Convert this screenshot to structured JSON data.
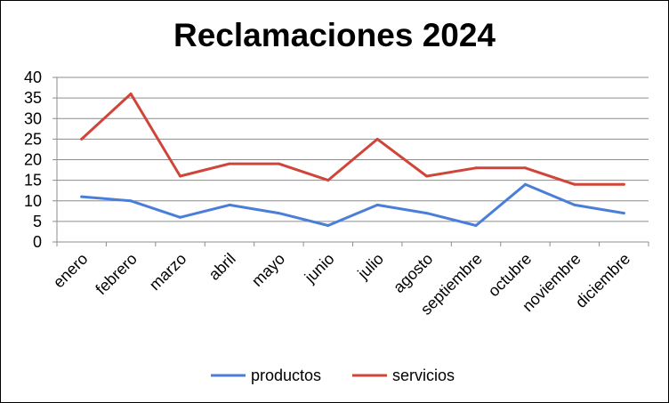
{
  "chart_data": {
    "type": "line",
    "title": "Reclamaciones 2024",
    "categories": [
      "enero",
      "febrero",
      "marzo",
      "abril",
      "mayo",
      "junio",
      "julio",
      "agosto",
      "septiembre",
      "octubre",
      "noviembre",
      "diciembre"
    ],
    "series": [
      {
        "name": "productos",
        "color": "#4a7ed9",
        "values": [
          11,
          10,
          6,
          9,
          7,
          4,
          9,
          7,
          4,
          14,
          9,
          7
        ]
      },
      {
        "name": "servicios",
        "color": "#d0453a",
        "values": [
          25,
          36,
          16,
          19,
          19,
          15,
          25,
          16,
          18,
          18,
          14,
          14
        ]
      }
    ],
    "ylim": [
      0,
      40
    ],
    "yticks": [
      0,
      5,
      10,
      15,
      20,
      25,
      30,
      35,
      40
    ],
    "grid": true,
    "legend_position": "bottom"
  }
}
